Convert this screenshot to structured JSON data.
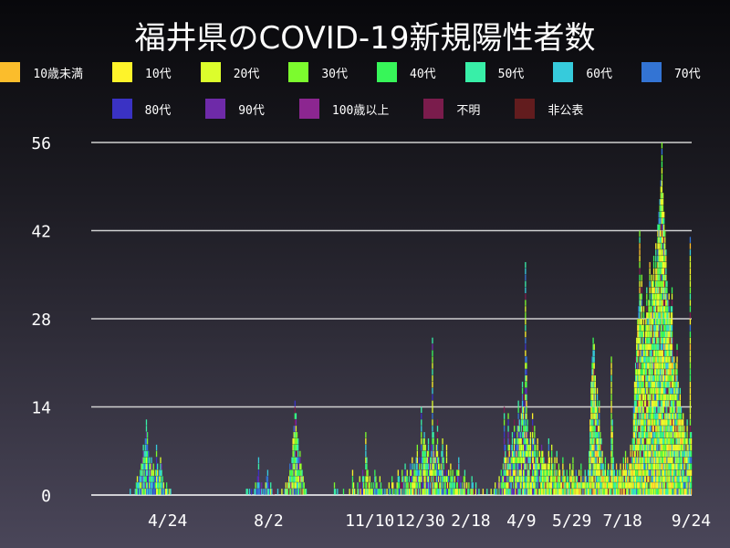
{
  "chart_data": {
    "type": "bar",
    "stacked": true,
    "title": "福井県のCOVID-19新規陽性者数",
    "legend": [
      {
        "name": "10歳未満",
        "color": "#fbbd2c"
      },
      {
        "name": "10代",
        "color": "#fef32a"
      },
      {
        "name": "20代",
        "color": "#dcfd2c"
      },
      {
        "name": "30代",
        "color": "#7cfb2e"
      },
      {
        "name": "40代",
        "color": "#37f659"
      },
      {
        "name": "50代",
        "color": "#38efa8"
      },
      {
        "name": "60代",
        "color": "#36cbdc"
      },
      {
        "name": "70代",
        "color": "#3374d4"
      },
      {
        "name": "80代",
        "color": "#3a32c4"
      },
      {
        "name": "90代",
        "color": "#6e2aa8"
      },
      {
        "name": "100歳以上",
        "color": "#8c2690"
      },
      {
        "name": "不明",
        "color": "#7a1c4c"
      },
      {
        "name": "非公表",
        "color": "#621c1e"
      }
    ],
    "legend_placement": "top",
    "x_range": [
      "2020-02-09",
      "2021-09-24"
    ],
    "x_ticks": [
      "4/24",
      "8/2",
      "11/10",
      "12/30",
      "2/18",
      "4/9",
      "5/29",
      "7/18",
      "9/24"
    ],
    "x_tick_dates": [
      "2020-04-24",
      "2020-08-02",
      "2020-11-10",
      "2020-12-30",
      "2021-02-18",
      "2021-04-09",
      "2021-05-29",
      "2021-07-18",
      "2021-09-24"
    ],
    "y_ticks": [
      "0",
      "14",
      "28",
      "42",
      "56"
    ],
    "ylim": [
      0,
      56
    ],
    "grid": true,
    "daily_totals": [
      0,
      0,
      0,
      0,
      0,
      0,
      0,
      0,
      0,
      0,
      0,
      0,
      0,
      0,
      0,
      0,
      0,
      0,
      0,
      0,
      0,
      0,
      0,
      0,
      0,
      0,
      0,
      0,
      0,
      0,
      0,
      0,
      0,
      0,
      0,
      0,
      0,
      0,
      1,
      0,
      0,
      0,
      0,
      1,
      2,
      3,
      2,
      3,
      4,
      5,
      6,
      8,
      7,
      9,
      12,
      10,
      7,
      6,
      5,
      6,
      4,
      5,
      3,
      4,
      8,
      5,
      3,
      4,
      6,
      5,
      3,
      2,
      1,
      1,
      2,
      1,
      0,
      1,
      1,
      0,
      0,
      0,
      0,
      0,
      0,
      0,
      0,
      0,
      0,
      0,
      0,
      0,
      0,
      0,
      0,
      0,
      0,
      0,
      0,
      0,
      0,
      0,
      0,
      0,
      0,
      0,
      0,
      0,
      0,
      0,
      0,
      0,
      0,
      0,
      0,
      0,
      0,
      0,
      0,
      0,
      0,
      0,
      0,
      0,
      0,
      0,
      0,
      0,
      0,
      0,
      0,
      0,
      0,
      0,
      0,
      0,
      0,
      0,
      0,
      0,
      0,
      0,
      0,
      0,
      0,
      0,
      0,
      0,
      0,
      0,
      0,
      0,
      0,
      1,
      1,
      0,
      1,
      0,
      1,
      0,
      0,
      1,
      2,
      1,
      3,
      6,
      2,
      1,
      2,
      0,
      1,
      1,
      2,
      3,
      4,
      2,
      1,
      2,
      1,
      0,
      1,
      0,
      0,
      0,
      1,
      0,
      0,
      0,
      1,
      0,
      0,
      1,
      2,
      1,
      2,
      3,
      5,
      4,
      6,
      9,
      11,
      15,
      13,
      10,
      9,
      6,
      7,
      5,
      4,
      3,
      2,
      1,
      1,
      0,
      0,
      0,
      0,
      0,
      0,
      0,
      0,
      0,
      0,
      0,
      0,
      0,
      0,
      0,
      0,
      0,
      0,
      0,
      0,
      0,
      0,
      0,
      0,
      0,
      0,
      0,
      2,
      1,
      0,
      1,
      0,
      0,
      0,
      0,
      0,
      1,
      0,
      0,
      0,
      0,
      0,
      1,
      0,
      0,
      4,
      2,
      1,
      0,
      0,
      2,
      1,
      3,
      1,
      2,
      4,
      3,
      1,
      10,
      6,
      4,
      2,
      3,
      1,
      2,
      1,
      2,
      4,
      3,
      2,
      1,
      1,
      3,
      2,
      1,
      1,
      0,
      1,
      0,
      1,
      0,
      2,
      1,
      0,
      3,
      2,
      0,
      1,
      1,
      2,
      4,
      3,
      1,
      2,
      4,
      3,
      2,
      5,
      3,
      4,
      2,
      3,
      5,
      4,
      6,
      3,
      5,
      4,
      6,
      8,
      5,
      6,
      4,
      14,
      7,
      9,
      10,
      8,
      6,
      7,
      9,
      5,
      6,
      8,
      25,
      10,
      7,
      6,
      8,
      12,
      6,
      5,
      4,
      7,
      9,
      6,
      3,
      4,
      8,
      3,
      4,
      2,
      5,
      3,
      4,
      2,
      3,
      1,
      4,
      5,
      6,
      2,
      3,
      1,
      2,
      3,
      4,
      1,
      2,
      1,
      2,
      0,
      1,
      3,
      2,
      1,
      0,
      2,
      1,
      0,
      1,
      0,
      0,
      0,
      1,
      0,
      0,
      0,
      1,
      0,
      0,
      0,
      1,
      0,
      0,
      1,
      2,
      1,
      1,
      2,
      3,
      2,
      4,
      3,
      5,
      14,
      8,
      6,
      5,
      13,
      9,
      6,
      8,
      10,
      7,
      12,
      9,
      8,
      11,
      15,
      12,
      10,
      14,
      18,
      16,
      13,
      37,
      22,
      12,
      8,
      9,
      10,
      7,
      13,
      9,
      11,
      8,
      6,
      9,
      5,
      7,
      6,
      8,
      7,
      6,
      5,
      6,
      4,
      5,
      9,
      6,
      4,
      8,
      5,
      3,
      6,
      4,
      7,
      3,
      5,
      4,
      2,
      3,
      6,
      4,
      3,
      2,
      4,
      3,
      2,
      5,
      3,
      4,
      6,
      3,
      2,
      4,
      3,
      2,
      4,
      3,
      5,
      2,
      3,
      2,
      4,
      3,
      2,
      4,
      7,
      12,
      18,
      22,
      25,
      24,
      19,
      14,
      17,
      12,
      15,
      10,
      9,
      7,
      5,
      4,
      6,
      3,
      4,
      5,
      3,
      4,
      22,
      12,
      6,
      4,
      3,
      5,
      4,
      3,
      4,
      5,
      3,
      4,
      6,
      4,
      7,
      5,
      6,
      4,
      5,
      8,
      6,
      9,
      14,
      18,
      22,
      25,
      28,
      30,
      42,
      32,
      35,
      27,
      30,
      24,
      28,
      33,
      29,
      31,
      37,
      30,
      35,
      34,
      38,
      33,
      40,
      36,
      43,
      45,
      47,
      50,
      56,
      48,
      45,
      42,
      39,
      34,
      31,
      32,
      28,
      30,
      33,
      25,
      22,
      19,
      21,
      24,
      18,
      15,
      17,
      14,
      12,
      13,
      11,
      10,
      9,
      12,
      8,
      10,
      41,
      10
    ]
  }
}
